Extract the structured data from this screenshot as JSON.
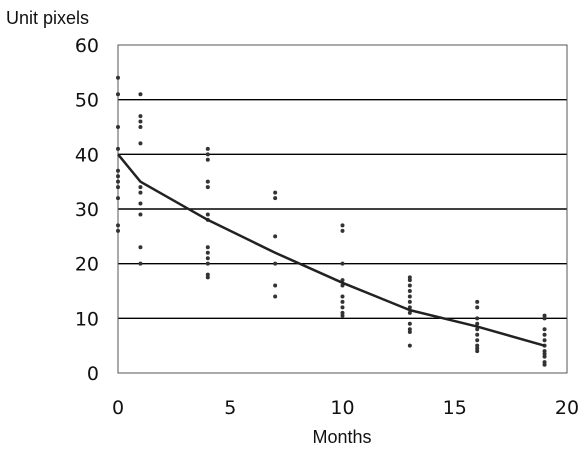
{
  "chart_data": {
    "type": "scatter",
    "title": "",
    "xlabel": "Months",
    "ylabel": "Unit pixels",
    "xlim": [
      0,
      20
    ],
    "ylim": [
      0,
      60
    ],
    "x_ticks": [
      0,
      5,
      10,
      15,
      20
    ],
    "y_ticks": [
      0,
      10,
      20,
      30,
      40,
      50,
      60
    ],
    "grid": "horizontal",
    "legend": "none",
    "colors": {
      "points": "#333333",
      "line": "#222222",
      "grid": "#000000",
      "frame": "#555555"
    },
    "series": [
      {
        "type": "scatter",
        "points": [
          [
            0,
            54
          ],
          [
            0,
            51
          ],
          [
            0,
            45
          ],
          [
            0,
            41
          ],
          [
            0,
            37
          ],
          [
            0,
            36
          ],
          [
            0,
            35
          ],
          [
            0,
            34
          ],
          [
            0,
            32
          ],
          [
            0,
            27
          ],
          [
            0,
            26
          ],
          [
            1,
            51
          ],
          [
            1,
            47
          ],
          [
            1,
            46
          ],
          [
            1,
            45
          ],
          [
            1,
            42
          ],
          [
            1,
            34
          ],
          [
            1,
            33
          ],
          [
            1,
            31
          ],
          [
            1,
            29
          ],
          [
            1,
            23
          ],
          [
            1,
            20
          ],
          [
            4,
            41
          ],
          [
            4,
            40
          ],
          [
            4,
            39
          ],
          [
            4,
            35
          ],
          [
            4,
            34
          ],
          [
            4,
            29
          ],
          [
            4,
            28
          ],
          [
            4,
            23
          ],
          [
            4,
            22
          ],
          [
            4,
            21
          ],
          [
            4,
            20
          ],
          [
            4,
            18
          ],
          [
            4,
            17.5
          ],
          [
            7,
            33
          ],
          [
            7,
            32
          ],
          [
            7,
            25
          ],
          [
            7,
            20
          ],
          [
            7,
            16
          ],
          [
            7,
            14
          ],
          [
            10,
            27
          ],
          [
            10,
            26
          ],
          [
            10,
            20
          ],
          [
            10,
            17
          ],
          [
            10,
            16
          ],
          [
            10,
            14
          ],
          [
            10,
            13
          ],
          [
            10,
            12
          ],
          [
            10,
            11
          ],
          [
            10,
            10.5
          ],
          [
            13,
            17.5
          ],
          [
            13,
            17
          ],
          [
            13,
            16
          ],
          [
            13,
            15
          ],
          [
            13,
            14
          ],
          [
            13,
            13
          ],
          [
            13,
            12
          ],
          [
            13,
            11
          ],
          [
            13,
            9
          ],
          [
            13,
            8
          ],
          [
            13,
            7.5
          ],
          [
            13,
            5
          ],
          [
            16,
            13
          ],
          [
            16,
            12
          ],
          [
            16,
            10
          ],
          [
            16,
            9
          ],
          [
            16,
            8
          ],
          [
            16,
            7
          ],
          [
            16,
            6
          ],
          [
            16,
            5
          ],
          [
            16,
            4.5
          ],
          [
            16,
            4
          ],
          [
            19,
            10.5
          ],
          [
            19,
            10
          ],
          [
            19,
            8
          ],
          [
            19,
            7
          ],
          [
            19,
            6
          ],
          [
            19,
            5
          ],
          [
            19,
            4
          ],
          [
            19,
            3.5
          ],
          [
            19,
            3
          ],
          [
            19,
            2
          ],
          [
            19,
            1.5
          ]
        ]
      },
      {
        "type": "line",
        "points": [
          [
            0,
            40
          ],
          [
            1,
            35
          ],
          [
            4,
            28
          ],
          [
            7,
            22
          ],
          [
            10,
            16.5
          ],
          [
            13,
            11.5
          ],
          [
            16,
            8.5
          ],
          [
            19,
            5
          ]
        ]
      }
    ]
  }
}
